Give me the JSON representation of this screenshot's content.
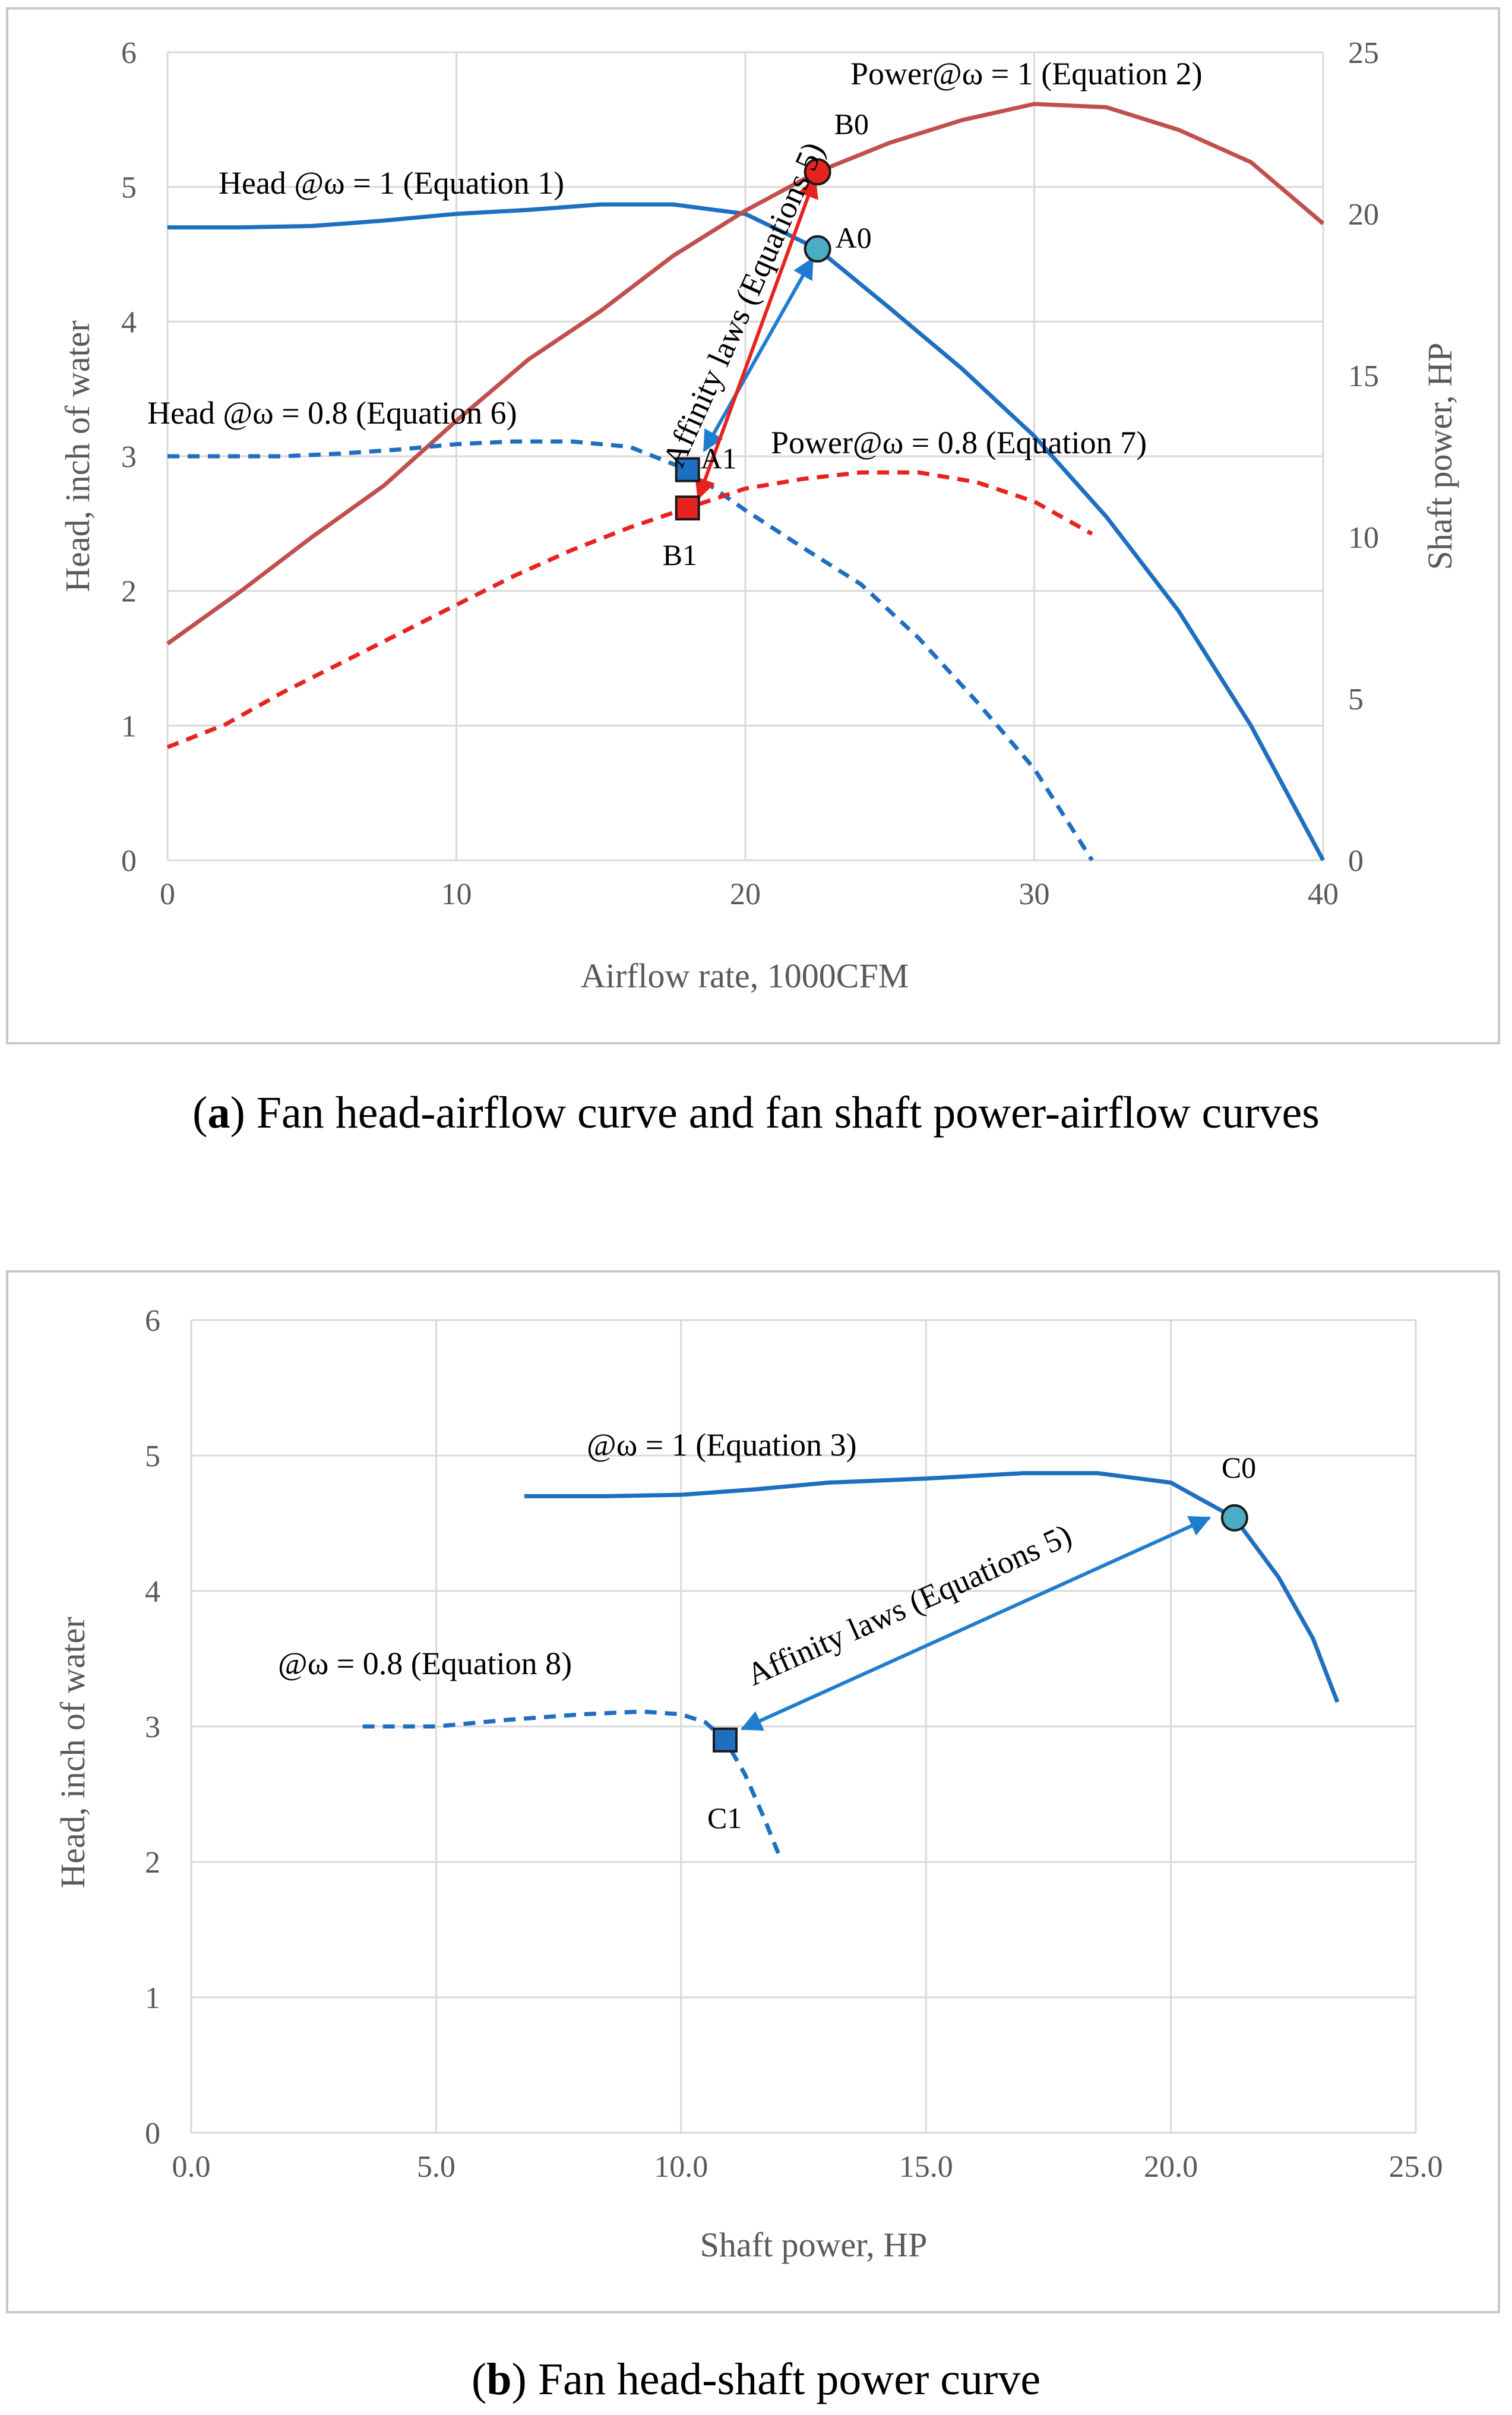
{
  "chart_data": [
    {
      "id": "a",
      "type": "line",
      "caption_bold": "a",
      "caption_text": "Fan head-airflow curve and fan shaft power-airflow curves",
      "xlabel": "Airflow rate, 1000CFM",
      "ylabel": "Head, inch of water",
      "y2label": "Shaft power, HP",
      "xlim": [
        0,
        40
      ],
      "ylim": [
        0,
        6
      ],
      "y2lim": [
        0,
        25
      ],
      "xticks": [
        "0",
        "10",
        "20",
        "30",
        "40"
      ],
      "yticks": [
        "0",
        "1",
        "2",
        "3",
        "4",
        "5",
        "6"
      ],
      "y2ticks": [
        "0",
        "5",
        "10",
        "15",
        "20",
        "25"
      ],
      "series": [
        {
          "name": "Head @ω = 1 (Equation 1)",
          "axis": "left",
          "color": "#1f6fc0",
          "dash": false,
          "x": [
            0,
            2.5,
            5,
            7.5,
            10,
            12.5,
            15,
            17.5,
            20,
            22.5,
            25,
            27.5,
            30,
            32.5,
            35,
            37.5,
            40
          ],
          "y": [
            4.7,
            4.7,
            4.71,
            4.75,
            4.8,
            4.83,
            4.87,
            4.87,
            4.8,
            4.54,
            4.1,
            3.65,
            3.15,
            2.55,
            1.85,
            1.0,
            0.0
          ]
        },
        {
          "name": "Power@ω = 1 (Equation 2)",
          "axis": "right",
          "color": "#c0504d",
          "dash": false,
          "x": [
            0,
            2.5,
            5,
            7.5,
            10,
            12.5,
            15,
            17.5,
            20,
            22.5,
            25,
            27.5,
            30,
            32.5,
            35,
            37.5,
            40
          ],
          "y": [
            6.7,
            8.3,
            10.0,
            11.6,
            13.6,
            15.5,
            17.0,
            18.7,
            20.1,
            21.3,
            22.2,
            22.9,
            23.4,
            23.3,
            22.6,
            21.6,
            19.7
          ]
        },
        {
          "name": "Head @ω = 0.8 (Equation 6)",
          "axis": "left",
          "color": "#1f6fc0",
          "dash": true,
          "x": [
            0,
            2,
            4,
            6,
            8,
            10,
            12,
            14,
            16,
            18,
            20,
            22,
            24,
            26,
            28,
            30,
            32
          ],
          "y": [
            3.0,
            3.0,
            3.0,
            3.02,
            3.05,
            3.09,
            3.11,
            3.11,
            3.07,
            2.9,
            2.6,
            2.32,
            2.05,
            1.65,
            1.18,
            0.68,
            0.0
          ]
        },
        {
          "name": "Power@ω = 0.8 (Equation 7)",
          "axis": "right",
          "color": "#e8231f",
          "dash": true,
          "x": [
            0,
            2,
            4,
            6,
            8,
            10,
            12,
            14,
            16,
            18,
            20,
            22,
            24,
            26,
            28,
            30,
            32
          ],
          "y": [
            3.5,
            4.2,
            5.2,
            6.1,
            7.0,
            7.9,
            8.8,
            9.6,
            10.3,
            10.9,
            11.5,
            11.8,
            12.0,
            12.0,
            11.7,
            11.1,
            10.1
          ]
        }
      ],
      "points": [
        {
          "label": "A0",
          "x": 22.5,
          "y": 4.54,
          "axis": "left",
          "shape": "circle",
          "color": "#4bacc6"
        },
        {
          "label": "A1",
          "x": 18.0,
          "y": 2.9,
          "axis": "left",
          "shape": "square",
          "color": "#1f6fc0"
        },
        {
          "label": "B0",
          "x": 22.5,
          "y": 21.3,
          "axis": "right",
          "shape": "circle",
          "color": "#e8231f"
        },
        {
          "label": "B1",
          "x": 18.0,
          "y": 10.9,
          "axis": "right",
          "shape": "square",
          "color": "#e8231f"
        }
      ],
      "annotations": {
        "head1": "Head @ω = 1 (Equation 1)",
        "power1": "Power@ω = 1 (Equation  2)",
        "head08": "Head @ω = 0.8 (Equation 6)",
        "power08": "Power@ω = 0.8 (Equation 7)",
        "affinity": "Affinity laws (Equations 5)"
      }
    },
    {
      "id": "b",
      "type": "line",
      "caption_bold": "b",
      "caption_text": "Fan head-shaft power curve",
      "xlabel": "Shaft power, HP",
      "ylabel": "Head, inch of water",
      "xlim": [
        0,
        25
      ],
      "ylim": [
        0,
        6
      ],
      "xticks": [
        "0.0",
        "5.0",
        "10.0",
        "15.0",
        "20.0",
        "25.0"
      ],
      "yticks": [
        "0",
        "1",
        "2",
        "3",
        "4",
        "5",
        "6"
      ],
      "series": [
        {
          "name": "@ω = 1 (Equation 3)",
          "color": "#1f6fc0",
          "dash": false,
          "x": [
            6.8,
            8.5,
            10.0,
            11.5,
            13.0,
            15.0,
            17.0,
            18.5,
            20.0,
            21.3,
            22.2,
            22.9,
            23.4
          ],
          "y": [
            4.7,
            4.7,
            4.71,
            4.75,
            4.8,
            4.83,
            4.87,
            4.87,
            4.8,
            4.54,
            4.1,
            3.65,
            3.18
          ]
        },
        {
          "name": "@ω = 0.8 (Equation 8)",
          "color": "#1f6fc0",
          "dash": true,
          "x": [
            3.5,
            5.0,
            6.5,
            8.0,
            9.2,
            10.0,
            10.5,
            10.9,
            11.3,
            11.7,
            12.0
          ],
          "y": [
            3.0,
            3.0,
            3.05,
            3.09,
            3.11,
            3.09,
            3.03,
            2.9,
            2.65,
            2.32,
            2.05
          ]
        }
      ],
      "points": [
        {
          "label": "C0",
          "x": 21.3,
          "y": 4.54,
          "shape": "circle",
          "color": "#4bacc6"
        },
        {
          "label": "C1",
          "x": 10.9,
          "y": 2.9,
          "shape": "square",
          "color": "#1f6fc0"
        }
      ],
      "annotations": {
        "curve1": "@ω = 1 (Equation 3)",
        "curve08": "@ω = 0.8 (Equation 8)",
        "affinity": "Affinity laws (Equations 5)"
      }
    }
  ]
}
